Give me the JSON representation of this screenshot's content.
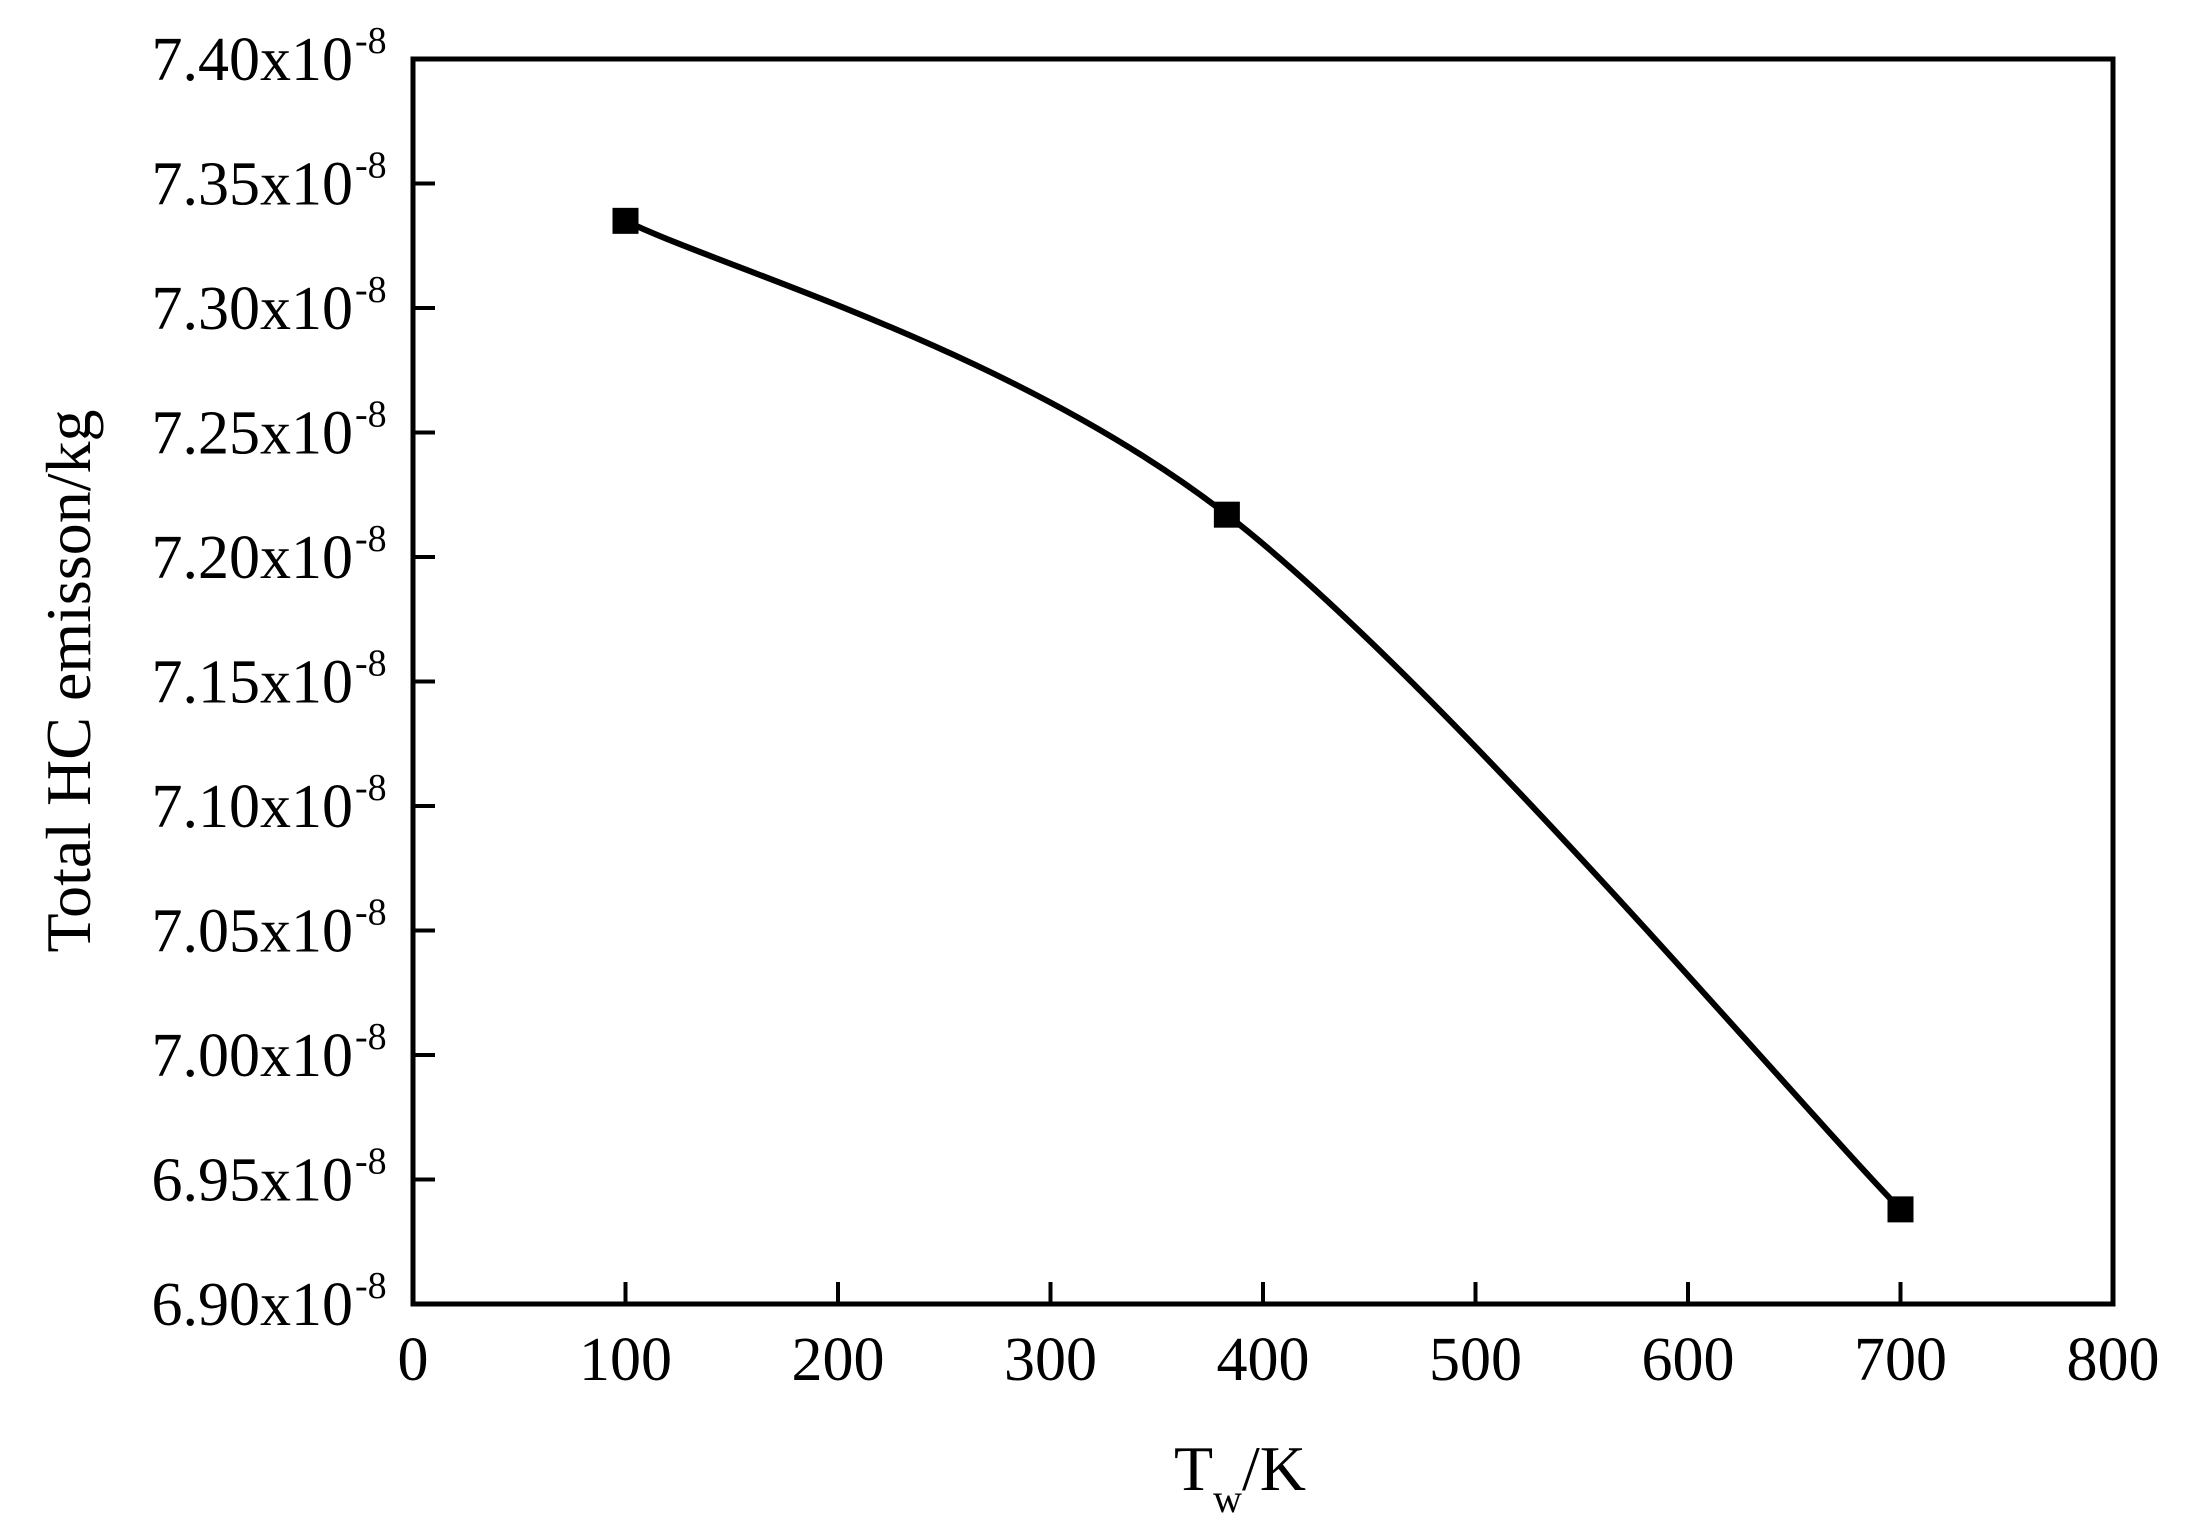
{
  "chart_data": {
    "type": "line",
    "title": "",
    "xlabel": {
      "main": "T",
      "sub": "w",
      "rest": "/K"
    },
    "ylabel": "Total HC emisson/kg",
    "xlim": [
      0,
      800
    ],
    "ylim": [
      6.9e-08,
      7.4e-08
    ],
    "x_ticks": [
      0,
      100,
      200,
      300,
      400,
      500,
      600,
      700,
      800
    ],
    "x_tick_labels": [
      "0",
      "100",
      "200",
      "300",
      "400",
      "500",
      "600",
      "700",
      "800"
    ],
    "y_ticks": [
      6.9e-08,
      6.95e-08,
      7e-08,
      7.05e-08,
      7.1e-08,
      7.15e-08,
      7.2e-08,
      7.25e-08,
      7.3e-08,
      7.35e-08,
      7.4e-08
    ],
    "y_tick_labels": [
      {
        "mantissa": "6.90x10",
        "exponent": "-8"
      },
      {
        "mantissa": "6.95x10",
        "exponent": "-8"
      },
      {
        "mantissa": "7.00x10",
        "exponent": "-8"
      },
      {
        "mantissa": "7.05x10",
        "exponent": "-8"
      },
      {
        "mantissa": "7.10x10",
        "exponent": "-8"
      },
      {
        "mantissa": "7.15x10",
        "exponent": "-8"
      },
      {
        "mantissa": "7.20x10",
        "exponent": "-8"
      },
      {
        "mantissa": "7.25x10",
        "exponent": "-8"
      },
      {
        "mantissa": "7.30x10",
        "exponent": "-8"
      },
      {
        "mantissa": "7.35x10",
        "exponent": "-8"
      },
      {
        "mantissa": "7.40x10",
        "exponent": "-8"
      }
    ],
    "grid": false,
    "legend": "none",
    "series": [
      {
        "marker": "square",
        "color": "#000000",
        "x": [
          100,
          383,
          700
        ],
        "y": [
          7.335e-08,
          7.217e-08,
          6.938e-08
        ]
      }
    ]
  }
}
